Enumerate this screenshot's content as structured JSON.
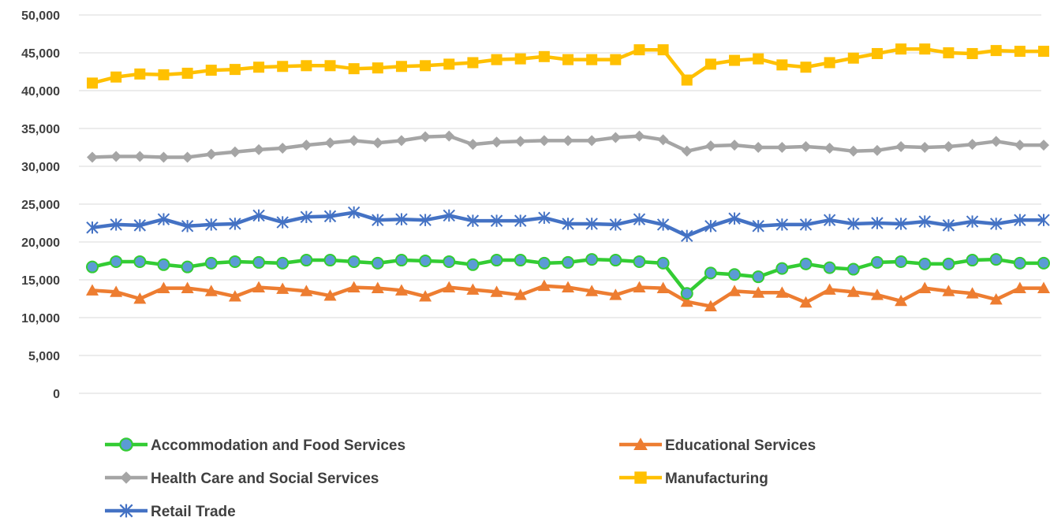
{
  "chart_data": {
    "type": "line",
    "title": "",
    "xlabel": "",
    "ylabel": "",
    "ylim": [
      0,
      50000
    ],
    "y_tick_step": 5000,
    "y_tick_labels": [
      "0",
      "5,000",
      "10,000",
      "15,000",
      "20,000",
      "25,000",
      "30,000",
      "35,000",
      "40,000",
      "45,000",
      "50,000"
    ],
    "grid": true,
    "legend_position": "bottom",
    "point_count": 41,
    "series": [
      {
        "name": "Accommodation and Food Services",
        "color": "#33cc33",
        "marker": "circle",
        "marker_fill": "#5b9bd5",
        "values": [
          16700,
          17400,
          17400,
          17000,
          16700,
          17200,
          17400,
          17300,
          17200,
          17600,
          17600,
          17400,
          17200,
          17600,
          17500,
          17400,
          17000,
          17600,
          17600,
          17200,
          17300,
          17700,
          17600,
          17400,
          17200,
          13200,
          15900,
          15700,
          15400,
          16500,
          17100,
          16600,
          16400,
          17300,
          17400,
          17100,
          17100,
          17600,
          17700,
          17200,
          17200
        ]
      },
      {
        "name": "Educational Services",
        "color": "#ed7d31",
        "marker": "triangle",
        "values": [
          13600,
          13400,
          12500,
          13900,
          13900,
          13500,
          12800,
          14000,
          13800,
          13500,
          12900,
          14000,
          13900,
          13600,
          12800,
          14000,
          13700,
          13400,
          13000,
          14200,
          14000,
          13500,
          13000,
          14000,
          13900,
          12100,
          11500,
          13500,
          13300,
          13300,
          12000,
          13700,
          13400,
          13000,
          12200,
          13900,
          13500,
          13200,
          12400,
          13900,
          13900
        ]
      },
      {
        "name": "Health Care and Social Services",
        "color": "#a5a5a5",
        "marker": "diamond",
        "values": [
          31200,
          31300,
          31300,
          31200,
          31200,
          31600,
          31900,
          32200,
          32400,
          32800,
          33100,
          33400,
          33100,
          33400,
          33900,
          34000,
          32900,
          33200,
          33300,
          33400,
          33400,
          33400,
          33800,
          34000,
          33500,
          32000,
          32700,
          32800,
          32500,
          32500,
          32600,
          32400,
          32000,
          32100,
          32600,
          32500,
          32600,
          32900,
          33300,
          32800,
          32800
        ]
      },
      {
        "name": "Manufacturing",
        "color": "#ffc000",
        "marker": "square",
        "values": [
          41000,
          41800,
          42200,
          42100,
          42300,
          42700,
          42800,
          43100,
          43200,
          43300,
          43300,
          42900,
          43000,
          43200,
          43300,
          43500,
          43700,
          44100,
          44200,
          44500,
          44100,
          44100,
          44100,
          45400,
          45400,
          41400,
          43500,
          44000,
          44200,
          43400,
          43100,
          43700,
          44300,
          44900,
          45500,
          45500,
          45000,
          44900,
          45300,
          45200,
          45200
        ]
      },
      {
        "name": "Retail Trade",
        "color": "#4472c4",
        "marker": "star",
        "values": [
          21900,
          22300,
          22200,
          23000,
          22100,
          22300,
          22400,
          23500,
          22600,
          23300,
          23400,
          23900,
          22900,
          23000,
          22900,
          23500,
          22800,
          22800,
          22800,
          23200,
          22400,
          22400,
          22300,
          23000,
          22300,
          20800,
          22100,
          23100,
          22100,
          22300,
          22300,
          22900,
          22400,
          22500,
          22400,
          22700,
          22200,
          22700,
          22400,
          22900,
          22900
        ]
      }
    ]
  }
}
